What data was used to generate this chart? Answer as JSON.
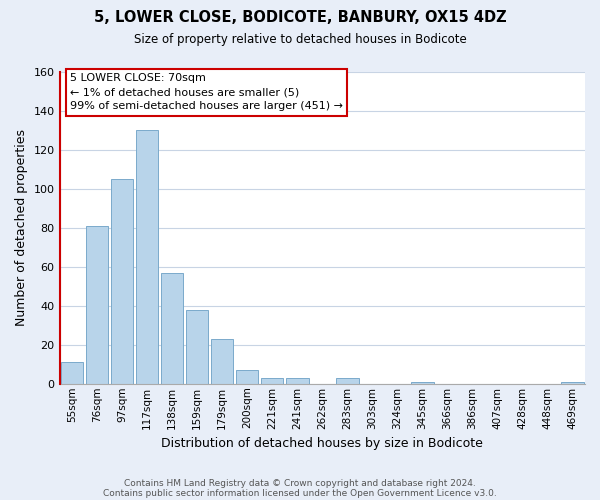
{
  "title": "5, LOWER CLOSE, BODICOTE, BANBURY, OX15 4DZ",
  "subtitle": "Size of property relative to detached houses in Bodicote",
  "xlabel": "Distribution of detached houses by size in Bodicote",
  "ylabel": "Number of detached properties",
  "bar_labels": [
    "55sqm",
    "76sqm",
    "97sqm",
    "117sqm",
    "138sqm",
    "159sqm",
    "179sqm",
    "200sqm",
    "221sqm",
    "241sqm",
    "262sqm",
    "283sqm",
    "303sqm",
    "324sqm",
    "345sqm",
    "366sqm",
    "386sqm",
    "407sqm",
    "428sqm",
    "448sqm",
    "469sqm"
  ],
  "bar_values": [
    11,
    81,
    105,
    130,
    57,
    38,
    23,
    7,
    3,
    3,
    0,
    3,
    0,
    0,
    1,
    0,
    0,
    0,
    0,
    0,
    1
  ],
  "bar_color": "#b8d4ea",
  "bar_edge_color": "#7aaacb",
  "ylim": [
    0,
    160
  ],
  "yticks": [
    0,
    20,
    40,
    60,
    80,
    100,
    120,
    140,
    160
  ],
  "marker_line_color": "#cc0000",
  "annotation_title": "5 LOWER CLOSE: 70sqm",
  "annotation_line1": "← 1% of detached houses are smaller (5)",
  "annotation_line2": "99% of semi-detached houses are larger (451) →",
  "annotation_box_color": "#ffffff",
  "annotation_box_edge": "#cc0000",
  "footer_line1": "Contains HM Land Registry data © Crown copyright and database right 2024.",
  "footer_line2": "Contains public sector information licensed under the Open Government Licence v3.0.",
  "background_color": "#e8eef8",
  "plot_bg_color": "#ffffff",
  "grid_color": "#c8d4e4"
}
